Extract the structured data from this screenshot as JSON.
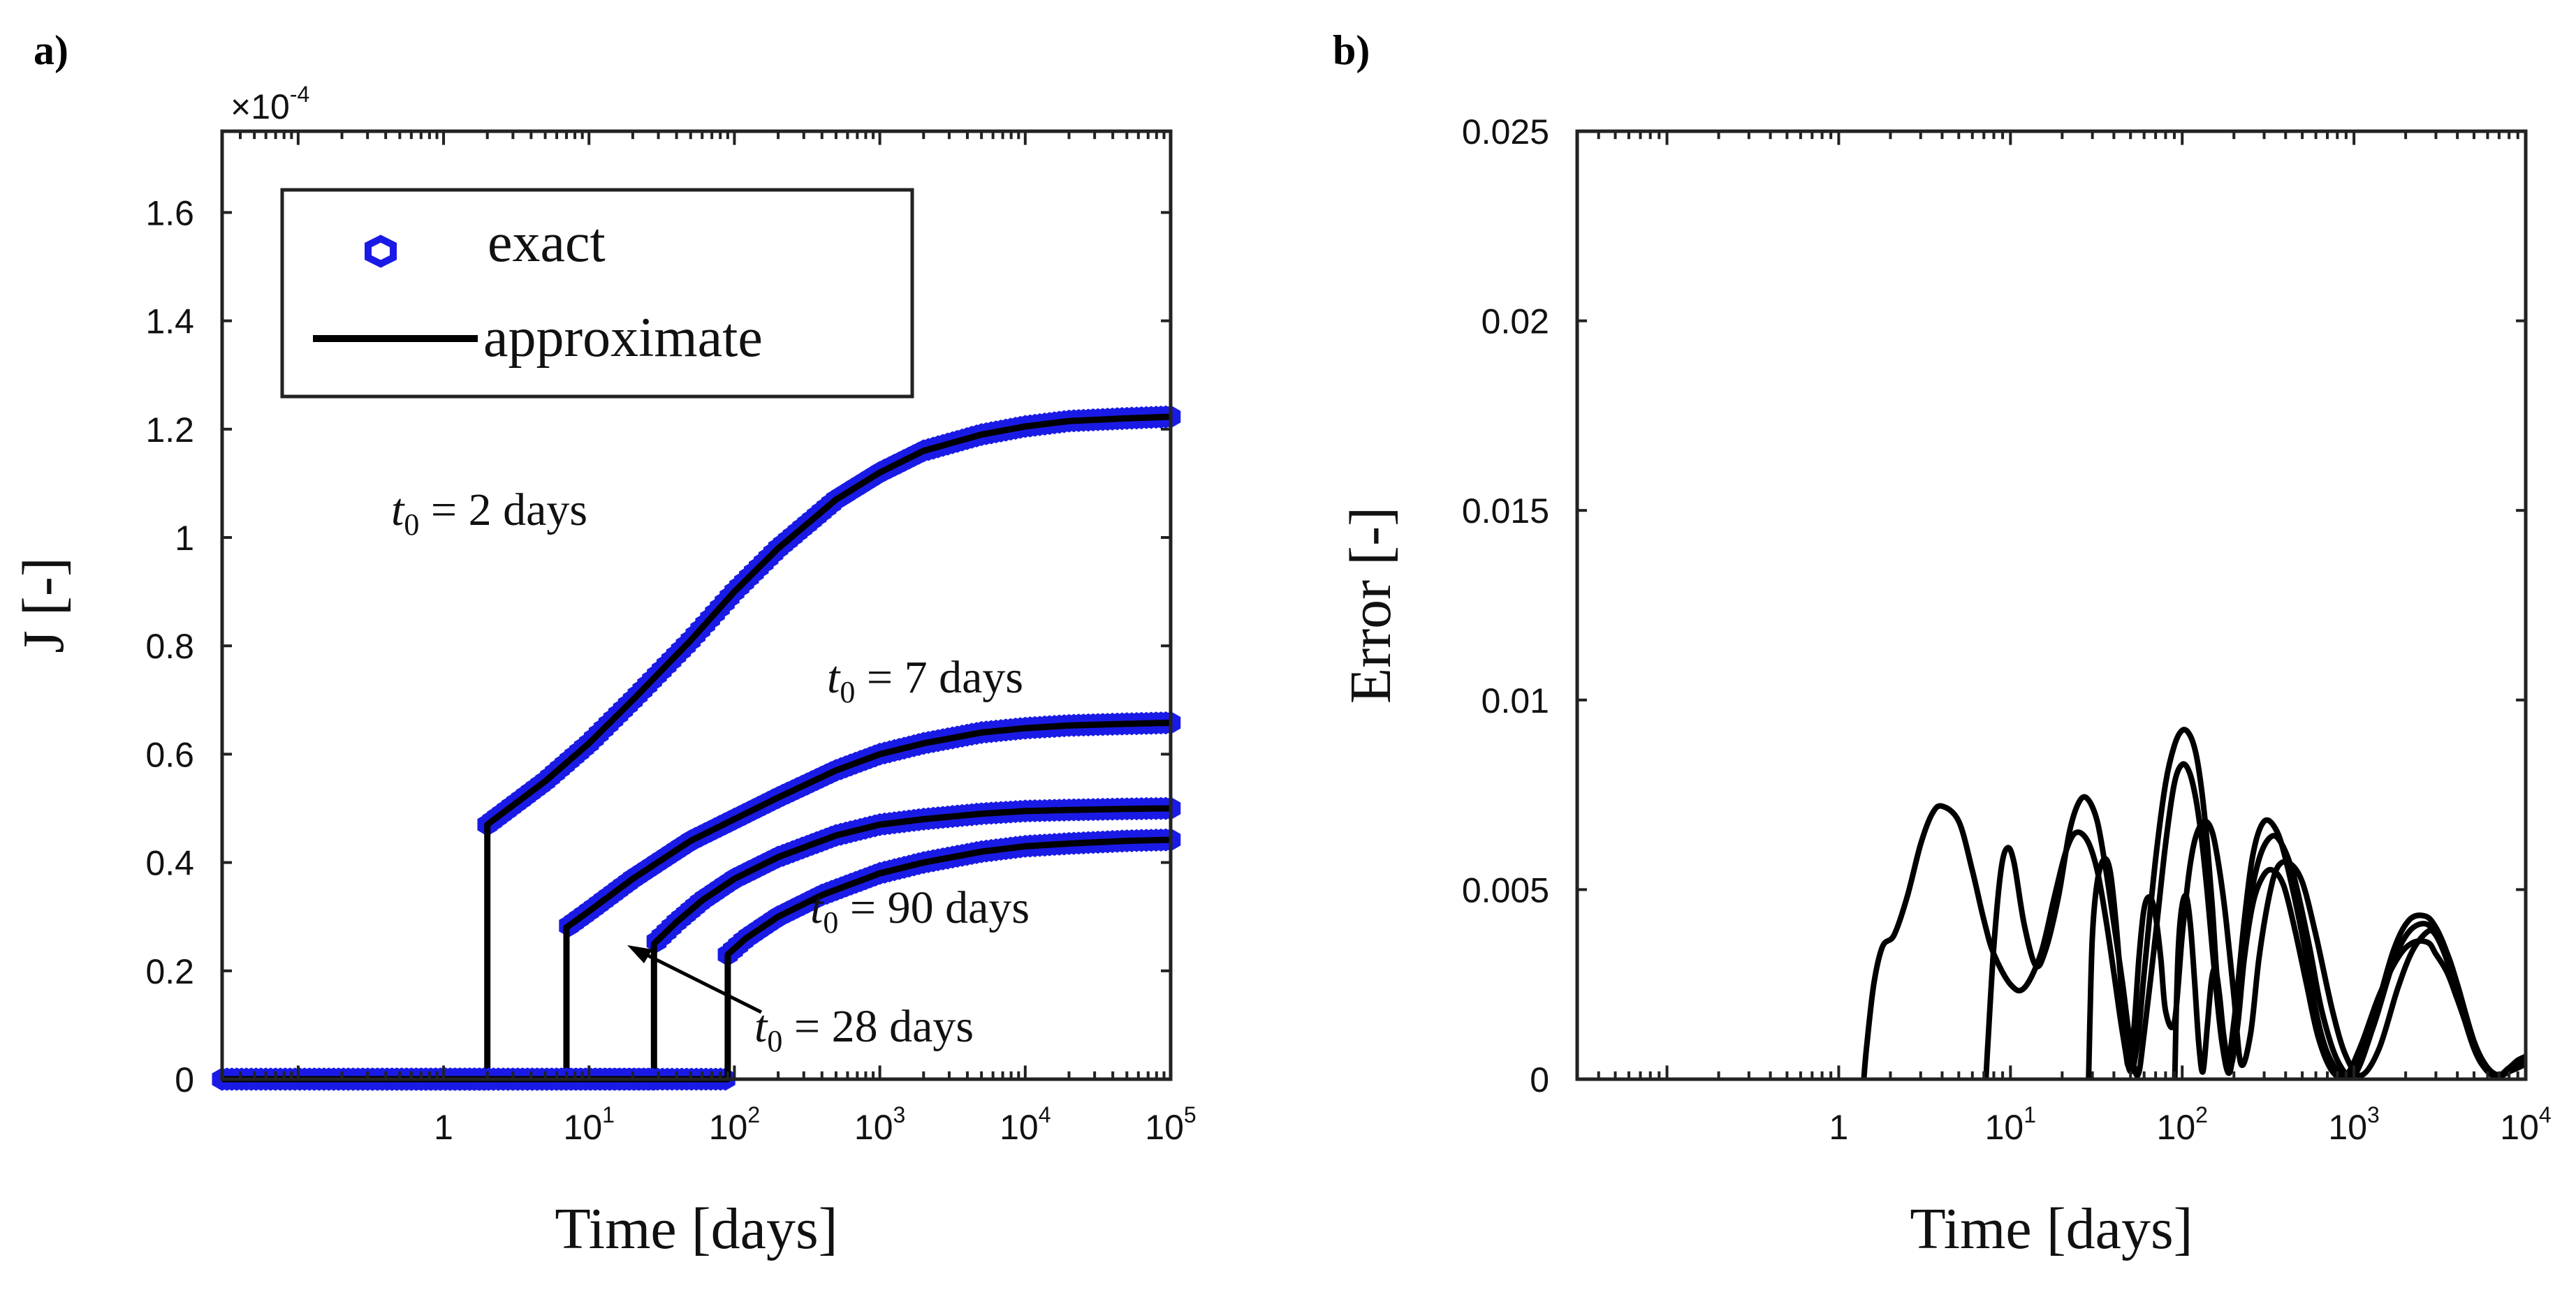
{
  "panels": {
    "a": "a)",
    "b": "b)"
  },
  "chart_data": [
    {
      "id": "a",
      "type": "line",
      "xlabel": "Time [days]",
      "ylabel": "J [-]",
      "xscale": "log",
      "xlim": [
        0.03,
        100000
      ],
      "ylim": [
        0,
        1.75
      ],
      "y_multiplier_label": "×10",
      "y_multiplier_exponent": "-4",
      "xticks": [
        {
          "value": 1,
          "base": "1",
          "exp": ""
        },
        {
          "value": 10,
          "base": "10",
          "exp": "1"
        },
        {
          "value": 100,
          "base": "10",
          "exp": "2"
        },
        {
          "value": 1000,
          "base": "10",
          "exp": "3"
        },
        {
          "value": 10000,
          "base": "10",
          "exp": "4"
        },
        {
          "value": 100000,
          "base": "10",
          "exp": "5"
        }
      ],
      "yticks": [
        {
          "value": 0,
          "label": "0"
        },
        {
          "value": 0.2,
          "label": "0.2"
        },
        {
          "value": 0.4,
          "label": "0.4"
        },
        {
          "value": 0.6,
          "label": "0.6"
        },
        {
          "value": 0.8,
          "label": "0.8"
        },
        {
          "value": 1.0,
          "label": "1"
        },
        {
          "value": 1.2,
          "label": "1.2"
        },
        {
          "value": 1.4,
          "label": "1.4"
        },
        {
          "value": 1.6,
          "label": "1.6"
        }
      ],
      "legend": {
        "position": "top-left",
        "entries": [
          {
            "label": "exact",
            "style": "marker",
            "color": "#1a1ae6"
          },
          {
            "label": "approximate",
            "style": "line",
            "color": "#000000"
          }
        ]
      },
      "series": [
        {
          "t0": 2,
          "x": [
            0.03,
            2,
            2,
            5,
            10,
            20,
            50,
            100,
            200,
            500,
            1000,
            2000,
            5000,
            10000,
            20000,
            50000,
            100000
          ],
          "y": [
            0,
            0,
            0.47,
            0.55,
            0.62,
            0.7,
            0.81,
            0.9,
            0.98,
            1.07,
            1.12,
            1.16,
            1.19,
            1.205,
            1.215,
            1.22,
            1.223
          ]
        },
        {
          "t0": 7,
          "x": [
            0.03,
            7,
            7,
            10,
            20,
            50,
            100,
            200,
            500,
            1000,
            2000,
            5000,
            10000,
            20000,
            50000,
            100000
          ],
          "y": [
            0,
            0,
            0.28,
            0.31,
            0.37,
            0.44,
            0.48,
            0.52,
            0.57,
            0.6,
            0.62,
            0.64,
            0.648,
            0.653,
            0.656,
            0.658
          ]
        },
        {
          "t0": 28,
          "x": [
            0.03,
            28,
            28,
            40,
            60,
            100,
            200,
            500,
            1000,
            2000,
            5000,
            10000,
            20000,
            50000,
            100000
          ],
          "y": [
            0,
            0,
            0.25,
            0.29,
            0.33,
            0.37,
            0.41,
            0.45,
            0.47,
            0.48,
            0.49,
            0.495,
            0.497,
            0.499,
            0.5
          ]
        },
        {
          "t0": 90,
          "x": [
            0.03,
            90,
            90,
            120,
            200,
            400,
            1000,
            2000,
            5000,
            10000,
            20000,
            50000,
            100000
          ],
          "y": [
            0,
            0,
            0.23,
            0.26,
            0.3,
            0.34,
            0.38,
            0.4,
            0.42,
            0.43,
            0.435,
            0.44,
            0.442
          ]
        }
      ],
      "annotations": [
        {
          "var": "t",
          "sub": "0",
          "text": " = 2 days"
        },
        {
          "var": "t",
          "sub": "0",
          "text": " = 7 days"
        },
        {
          "var": "t",
          "sub": "0",
          "text": " = 90 days"
        },
        {
          "var": "t",
          "sub": "0",
          "text": " = 28 days"
        }
      ]
    },
    {
      "id": "b",
      "type": "line",
      "xlabel": "Time [days]",
      "ylabel": "Error [-]",
      "xscale": "log",
      "xlim": [
        0.03,
        10000
      ],
      "ylim": [
        0,
        0.025
      ],
      "xticks": [
        {
          "value": 1,
          "base": "1",
          "exp": ""
        },
        {
          "value": 10,
          "base": "10",
          "exp": "1"
        },
        {
          "value": 100,
          "base": "10",
          "exp": "2"
        },
        {
          "value": 1000,
          "base": "10",
          "exp": "3"
        },
        {
          "value": 10000,
          "base": "10",
          "exp": "4"
        }
      ],
      "yticks": [
        {
          "value": 0,
          "label": "0"
        },
        {
          "value": 0.005,
          "label": "0.005"
        },
        {
          "value": 0.01,
          "label": "0.01"
        },
        {
          "value": 0.015,
          "label": "0.015"
        },
        {
          "value": 0.02,
          "label": "0.02"
        },
        {
          "value": 0.025,
          "label": "0.025"
        }
      ],
      "series": [
        {
          "t0": 2,
          "x": [
            1.4,
            1.45,
            1.6,
            1.8,
            2.1,
            2.5,
            3,
            3.5,
            4,
            5,
            6,
            7,
            8,
            10,
            12,
            15,
            18,
            21,
            24,
            28,
            32,
            36,
            40,
            45,
            50,
            55,
            60,
            70,
            80,
            90,
            100,
            110,
            120,
            130,
            140,
            150,
            160,
            180,
            200,
            230,
            260,
            300,
            350,
            400,
            500,
            600,
            700,
            850,
            1000,
            1300,
            1700,
            2100,
            2600,
            3000,
            3500,
            4000,
            5000,
            6000,
            7000,
            8000,
            9000,
            10000
          ],
          "y": [
            0,
            0.0008,
            0.0025,
            0.0035,
            0.0038,
            0.0048,
            0.0062,
            0.007,
            0.0072,
            0.0068,
            0.0055,
            0.0042,
            0.0033,
            0.0025,
            0.0024,
            0.0033,
            0.0048,
            0.006,
            0.0065,
            0.0063,
            0.0055,
            0.0042,
            0.0028,
            0.0012,
            0.0002,
            0.001,
            0.0028,
            0.0058,
            0.0078,
            0.0088,
            0.0092,
            0.0091,
            0.0086,
            0.0076,
            0.0062,
            0.0045,
            0.0026,
            0.0004,
            0.0015,
            0.0042,
            0.006,
            0.0068,
            0.0066,
            0.0058,
            0.0038,
            0.0018,
            0.0007,
            0.0001,
            0.0002,
            0.0016,
            0.0034,
            0.0042,
            0.0043,
            0.004,
            0.0033,
            0.0024,
            0.0009,
            0.0002,
            0.0001,
            0.0003,
            0.0005,
            0.0006
          ]
        },
        {
          "t0": 7,
          "x": [
            7.2,
            7.4,
            8,
            8.8,
            9.6,
            10.5,
            12,
            14,
            16,
            19,
            22,
            25,
            28,
            32,
            36,
            40,
            45,
            50,
            55,
            60,
            70,
            80,
            90,
            100,
            110,
            120,
            130,
            140,
            150,
            170,
            190,
            210,
            240,
            280,
            330,
            380,
            450,
            550,
            650,
            800,
            1000,
            1300,
            1700,
            2100,
            2600,
            3000,
            3500,
            4000,
            5000,
            6000,
            7000,
            8000,
            9000,
            10000
          ],
          "y": [
            0,
            0.001,
            0.0035,
            0.0055,
            0.0061,
            0.0057,
            0.0041,
            0.003,
            0.0034,
            0.0048,
            0.0065,
            0.0073,
            0.0074,
            0.0068,
            0.0055,
            0.0041,
            0.0025,
            0.0009,
            0.0001,
            0.0012,
            0.0038,
            0.0062,
            0.0078,
            0.0083,
            0.0081,
            0.0074,
            0.0063,
            0.0049,
            0.0034,
            0.001,
            0.0002,
            0.0021,
            0.0043,
            0.0058,
            0.0064,
            0.0062,
            0.0053,
            0.0035,
            0.0018,
            0.0005,
            0.0001,
            0.0014,
            0.0031,
            0.0039,
            0.0041,
            0.0038,
            0.0031,
            0.0022,
            0.0008,
            0.0002,
            0.0001,
            0.0003,
            0.0004,
            0.0005
          ]
        },
        {
          "t0": 28,
          "x": [
            28.5,
            29,
            30,
            32,
            35,
            38,
            41,
            44,
            48,
            52,
            56,
            60,
            65,
            70,
            75,
            80,
            90,
            100,
            110,
            120,
            135,
            150,
            165,
            180,
            200,
            220,
            250,
            280,
            320,
            360,
            420,
            500,
            600,
            750,
            900,
            1100,
            1400,
            1800,
            2200,
            2700,
            3000,
            3500,
            4000,
            5000,
            6000,
            7000,
            8000,
            9000,
            10000
          ],
          "y": [
            0,
            0.0015,
            0.0038,
            0.0052,
            0.0058,
            0.0055,
            0.0042,
            0.0025,
            0.0004,
            0.0012,
            0.0032,
            0.0045,
            0.0048,
            0.0043,
            0.0032,
            0.0018,
            0.0015,
            0.0038,
            0.0055,
            0.0064,
            0.0068,
            0.0065,
            0.0055,
            0.0042,
            0.0022,
            0.0004,
            0.0012,
            0.0032,
            0.0048,
            0.0056,
            0.0057,
            0.0052,
            0.0038,
            0.0018,
            0.0006,
            0.0001,
            0.0008,
            0.0024,
            0.0034,
            0.0039,
            0.0038,
            0.0033,
            0.0025,
            0.001,
            0.0003,
            0.0001,
            0.0002,
            0.0004,
            0.0005
          ]
        },
        {
          "t0": 90,
          "x": [
            90.5,
            92,
            95,
            100,
            106,
            112,
            118,
            125,
            132,
            140,
            148,
            156,
            165,
            175,
            190,
            210,
            230,
            260,
            300,
            340,
            390,
            450,
            530,
            620,
            750,
            900,
            1100,
            1400,
            1800,
            2200,
            2700,
            3000,
            3500,
            4000,
            5000,
            6000,
            7000,
            8000,
            9000,
            10000
          ],
          "y": [
            0,
            0.0015,
            0.0035,
            0.0046,
            0.0048,
            0.004,
            0.0026,
            0.0009,
            0.0002,
            0.0014,
            0.0026,
            0.0029,
            0.0022,
            0.0011,
            0.0003,
            0.0014,
            0.0032,
            0.0047,
            0.0054,
            0.0055,
            0.0051,
            0.004,
            0.0025,
            0.0011,
            0.0002,
            0.0001,
            0.0009,
            0.0022,
            0.0032,
            0.0036,
            0.0036,
            0.0033,
            0.0028,
            0.0021,
            0.0009,
            0.0003,
            0.0001,
            0.0002,
            0.0003,
            0.0004
          ]
        }
      ]
    }
  ]
}
